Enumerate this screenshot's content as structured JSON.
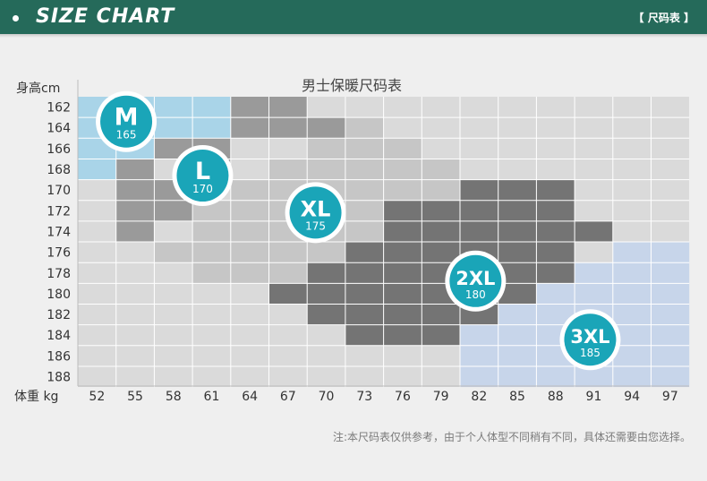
{
  "header": {
    "title": "SIZE CHART",
    "tag": "【 尺码表 】"
  },
  "footnote": "注:本尺码表仅供参考，由于个人体型不同稍有不同，具体还需要由您选择。",
  "colors": {
    "banner": "#256a5a",
    "M": "#a9d4e8",
    "L": "#9a9a9a",
    "XL": "#c6c6c6",
    "2XL": "#747474",
    "3XL": "#c7d5ea",
    "badge": "#1aa5b8"
  },
  "chart_data": {
    "type": "heatmap",
    "title": "男士保暖尺码表",
    "ylabel": "身高cm",
    "xlabel": "体重 kg",
    "x": [
      52,
      55,
      58,
      61,
      64,
      67,
      70,
      73,
      76,
      79,
      82,
      85,
      88,
      91,
      94,
      97
    ],
    "y": [
      162,
      164,
      166,
      168,
      170,
      172,
      174,
      176,
      178,
      180,
      182,
      184,
      186,
      188
    ],
    "grid": true,
    "series": [
      {
        "name": "M",
        "badge_value": "165",
        "regions": [
          {
            "weight": [
              52,
              61
            ],
            "height": [
              162,
              164
            ]
          },
          {
            "weight": [
              52,
              55
            ],
            "height": [
              166,
              168
            ]
          }
        ]
      },
      {
        "name": "L",
        "badge_value": "170",
        "regions": [
          {
            "weight": [
              64,
              67
            ],
            "height": [
              162,
              164
            ]
          },
          {
            "weight": [
              70,
              70
            ],
            "height": [
              164,
              164
            ]
          },
          {
            "weight": [
              58,
              61
            ],
            "height": [
              166,
              166
            ]
          },
          {
            "weight": [
              61,
              61
            ],
            "height": [
              168,
              168
            ]
          },
          {
            "weight": [
              55,
              55
            ],
            "height": [
              168,
              174
            ]
          },
          {
            "weight": [
              58,
              58
            ],
            "height": [
              170,
              172
            ]
          }
        ]
      },
      {
        "name": "XL",
        "badge_value": "175",
        "regions": [
          {
            "weight": [
              73,
              73
            ],
            "height": [
              164,
              164
            ]
          },
          {
            "weight": [
              70,
              76
            ],
            "height": [
              166,
              166
            ]
          },
          {
            "weight": [
              67,
              79
            ],
            "height": [
              168,
              168
            ]
          },
          {
            "weight": [
              64,
              79
            ],
            "height": [
              170,
              170
            ]
          },
          {
            "weight": [
              61,
              73
            ],
            "height": [
              172,
              174
            ]
          },
          {
            "weight": [
              58,
              70
            ],
            "height": [
              176,
              176
            ]
          },
          {
            "weight": [
              61,
              67
            ],
            "height": [
              178,
              178
            ]
          }
        ]
      },
      {
        "name": "2XL",
        "badge_value": "180",
        "regions": [
          {
            "weight": [
              82,
              88
            ],
            "height": [
              170,
              170
            ]
          },
          {
            "weight": [
              76,
              88
            ],
            "height": [
              172,
              172
            ]
          },
          {
            "weight": [
              76,
              91
            ],
            "height": [
              174,
              174
            ]
          },
          {
            "weight": [
              73,
              88
            ],
            "height": [
              176,
              176
            ]
          },
          {
            "weight": [
              70,
              88
            ],
            "height": [
              178,
              178
            ]
          },
          {
            "weight": [
              67,
              85
            ],
            "height": [
              180,
              180
            ]
          },
          {
            "weight": [
              70,
              85
            ],
            "height": [
              182,
              182
            ]
          },
          {
            "weight": [
              73,
              79
            ],
            "height": [
              184,
              184
            ]
          }
        ]
      },
      {
        "name": "3XL",
        "badge_value": "185",
        "regions": [
          {
            "weight": [
              94,
              97
            ],
            "height": [
              176,
              176
            ]
          },
          {
            "weight": [
              91,
              97
            ],
            "height": [
              178,
              178
            ]
          },
          {
            "weight": [
              88,
              97
            ],
            "height": [
              180,
              180
            ]
          },
          {
            "weight": [
              85,
              97
            ],
            "height": [
              182,
              182
            ]
          },
          {
            "weight": [
              82,
              97
            ],
            "height": [
              184,
              188
            ]
          }
        ]
      }
    ]
  }
}
